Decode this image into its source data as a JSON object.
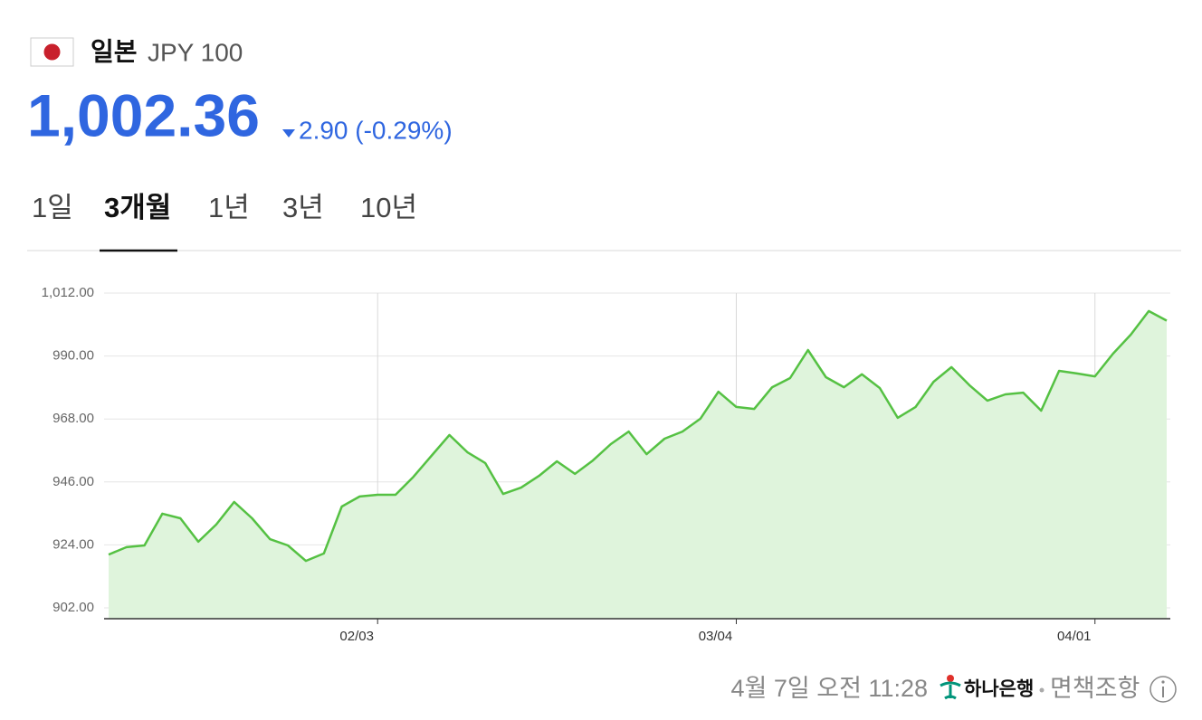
{
  "header": {
    "country": "일본",
    "currency": "JPY 100"
  },
  "price": {
    "value": "1,002.36",
    "change": "2.90 (-0.29%)"
  },
  "tabs": [
    "1일",
    "3개월",
    "1년",
    "3년",
    "10년"
  ],
  "chart_data": {
    "type": "area",
    "color": "#55c143",
    "fill": "#dff4dc",
    "categories": [
      null,
      null,
      null,
      null,
      null,
      null,
      null,
      null,
      null,
      null,
      null,
      null,
      null,
      null,
      null,
      "02/03",
      null,
      null,
      null,
      null,
      null,
      null,
      null,
      null,
      null,
      null,
      null,
      null,
      null,
      null,
      null,
      null,
      null,
      null,
      null,
      "03/04",
      null,
      null,
      null,
      null,
      null,
      null,
      null,
      null,
      null,
      null,
      null,
      null,
      null,
      null,
      null,
      null,
      null,
      null,
      null,
      "04/01",
      null,
      null,
      null,
      null
    ],
    "values": [
      920.6,
      923.2,
      923.8,
      934.9,
      933.3,
      925.1,
      931.1,
      939.0,
      933.3,
      926.0,
      923.8,
      918.4,
      921.0,
      937.4,
      940.9,
      941.5,
      941.5,
      947.8,
      955.1,
      962.4,
      956.4,
      952.6,
      941.8,
      944.0,
      948.1,
      953.2,
      948.8,
      953.5,
      959.2,
      963.6,
      955.7,
      961.1,
      963.6,
      968.1,
      977.5,
      972.2,
      971.5,
      979.1,
      982.3,
      992.1,
      982.6,
      979.1,
      983.6,
      978.8,
      968.4,
      972.2,
      981.0,
      986.1,
      979.8,
      974.4,
      976.6,
      977.2,
      970.9,
      984.8,
      983.9,
      982.9,
      990.8,
      997.5,
      1005.7,
      1002.36
    ],
    "ylim": [
      898.2,
      1012
    ],
    "yticks": [
      {
        "value": 902,
        "label": "902.00"
      },
      {
        "value": 924,
        "label": "924.00"
      },
      {
        "value": 946,
        "label": "946.00"
      },
      {
        "value": 968,
        "label": "968.00"
      },
      {
        "value": 990,
        "label": "990.00"
      },
      {
        "value": 1012,
        "label": "1,012.00"
      }
    ],
    "grid": true
  },
  "footer": {
    "timestamp": "4월 7일 오전 11:28",
    "bank": "하나은행",
    "disclaimer": "면책조항"
  }
}
